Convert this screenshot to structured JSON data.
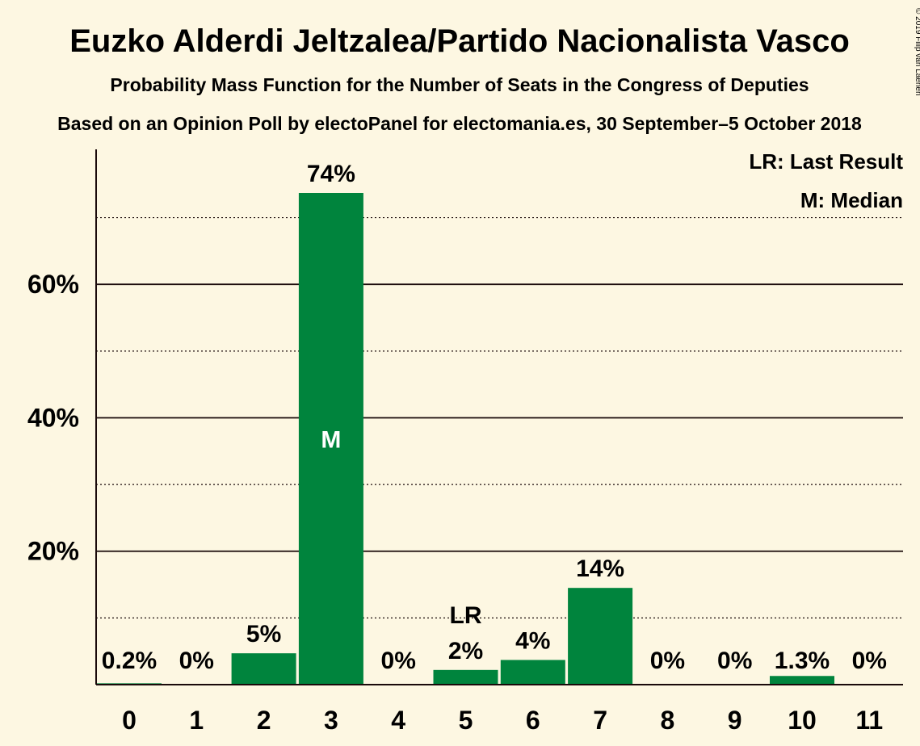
{
  "chart_data": {
    "type": "bar",
    "title": "Euzko Alderdi Jeltzalea/Partido Nacionalista Vasco",
    "subtitle": "Probability Mass Function for the Number of Seats in the Congress of Deputies",
    "source": "Based on an Opinion Poll by electoPanel for electomania.es, 30 September–5 October 2018",
    "copyright": "© 2019 Filip van Laenen",
    "categories": [
      "0",
      "1",
      "2",
      "3",
      "4",
      "5",
      "6",
      "7",
      "8",
      "9",
      "10",
      "11"
    ],
    "values": [
      0.2,
      0,
      4.7,
      73.7,
      0,
      2.2,
      3.7,
      14.5,
      0,
      0,
      1.3,
      0
    ],
    "value_labels": [
      "0.2%",
      "0%",
      "5%",
      "74%",
      "0%",
      "2%",
      "4%",
      "14%",
      "0%",
      "0%",
      "1.3%",
      "0%"
    ],
    "ylim": [
      0,
      80
    ],
    "y_ticks": [
      {
        "value": 20,
        "label": "20%"
      },
      {
        "value": 40,
        "label": "40%"
      },
      {
        "value": 60,
        "label": "60%"
      }
    ],
    "minor_gridlines": [
      10,
      30,
      50,
      70
    ],
    "markers": {
      "last_result": {
        "category": "5",
        "label": "LR"
      },
      "median": {
        "category": "3",
        "label": "M"
      }
    },
    "legend": [
      "LR: Last Result",
      "M: Median"
    ],
    "legend_position": "top-right",
    "bar_color": "#00843d",
    "grid": true
  }
}
